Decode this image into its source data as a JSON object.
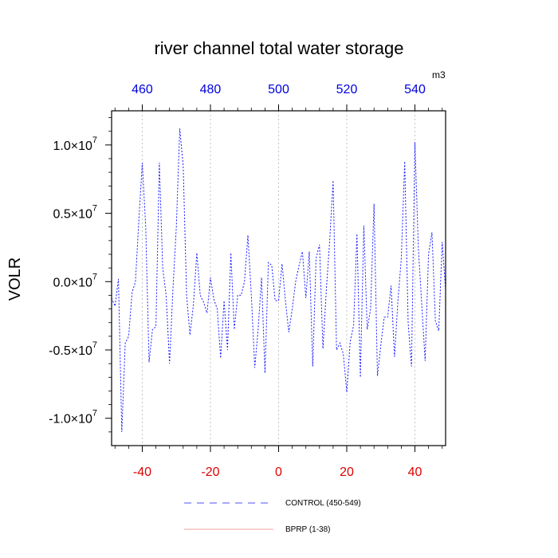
{
  "chart_data": {
    "type": "line",
    "title": "river channel total water storage",
    "ylabel": "VOLR",
    "top_axis_unit": "m3",
    "xlim": [
      -49,
      49
    ],
    "ylim": [
      -12000000,
      12500000
    ],
    "bottom_ticks": [
      {
        "value": -40,
        "label": "-40"
      },
      {
        "value": -20,
        "label": "-20"
      },
      {
        "value": 0,
        "label": "0"
      },
      {
        "value": 20,
        "label": "20"
      },
      {
        "value": 40,
        "label": "40"
      }
    ],
    "top_ticks": [
      {
        "value": -40,
        "label": "460"
      },
      {
        "value": -20,
        "label": "480"
      },
      {
        "value": 0,
        "label": "500"
      },
      {
        "value": 20,
        "label": "520"
      },
      {
        "value": 40,
        "label": "540"
      }
    ],
    "left_ticks": [
      {
        "value": 10000000,
        "label": "1.0×10",
        "exp": "7"
      },
      {
        "value": 5000000,
        "label": "0.5×10",
        "exp": "7"
      },
      {
        "value": 0,
        "label": "0.0×10",
        "exp": "7"
      },
      {
        "value": -5000000,
        "label": "-0.5×10",
        "exp": "7"
      },
      {
        "value": -10000000,
        "label": "-1.0×10",
        "exp": "7"
      }
    ],
    "series": [
      {
        "name": "CONTROL (450-549)",
        "color": "#1a1aff",
        "style": "dashed",
        "x": [
          -49,
          -48,
          -47,
          -46,
          -45,
          -44,
          -43,
          -42,
          -41,
          -40,
          -39,
          -38,
          -37,
          -36,
          -35,
          -34,
          -33,
          -32,
          -31,
          -30,
          -29,
          -28,
          -27,
          -26,
          -25,
          -24,
          -23,
          -22,
          -21,
          -20,
          -19,
          -18,
          -17,
          -16,
          -15,
          -14,
          -13,
          -12,
          -11,
          -10,
          -9,
          -8,
          -7,
          -6,
          -5,
          -4,
          -3,
          -2,
          -1,
          0,
          1,
          2,
          3,
          4,
          5,
          6,
          7,
          8,
          9,
          10,
          11,
          12,
          13,
          14,
          15,
          16,
          17,
          18,
          19,
          20,
          21,
          22,
          23,
          24,
          25,
          26,
          27,
          28,
          29,
          30,
          31,
          32,
          33,
          34,
          35,
          36,
          37,
          38,
          39,
          40,
          41,
          42,
          43,
          44,
          45,
          46,
          47,
          48,
          49
        ],
        "y": [
          -1200000,
          -1800000,
          200000,
          -11000000,
          -4500000,
          -4000000,
          -800000,
          0,
          4500000,
          8700000,
          4000000,
          -5900000,
          -3500000,
          -3300000,
          8700000,
          1000000,
          -1000000,
          -6000000,
          -500000,
          4000000,
          11200000,
          8500000,
          -1000000,
          -3900000,
          -1700000,
          2100000,
          -1000000,
          -1500000,
          -2300000,
          300000,
          -1300000,
          -2000000,
          -5600000,
          -1400000,
          -5000000,
          2100000,
          -3500000,
          -1000000,
          -1000000,
          0,
          3400000,
          -1000000,
          -6300000,
          -3500000,
          300000,
          -6700000,
          1400000,
          1200000,
          -1400000,
          -1400000,
          1300000,
          -1400000,
          -3700000,
          -2000000,
          0,
          1200000,
          2200000,
          -1200000,
          2200000,
          -6200000,
          1700000,
          2700000,
          -4900000,
          -600000,
          3000000,
          7400000,
          -5000000,
          -4500000,
          -5300000,
          -8100000,
          -4400000,
          -3200000,
          3500000,
          -7000000,
          4100000,
          -3500000,
          -2000000,
          5700000,
          -6900000,
          -4600000,
          -2600000,
          -2600000,
          -300000,
          -5500000,
          -1500000,
          1700000,
          8800000,
          -3000000,
          -6200000,
          10200000,
          2500000,
          -1700000,
          -5800000,
          2000000,
          3600000,
          -2900000,
          -3600000,
          2900000,
          -600000
        ]
      },
      {
        "name": "BPRP (1-38)",
        "color": "#f08080",
        "style": "solid",
        "x": [],
        "y": []
      }
    ]
  }
}
